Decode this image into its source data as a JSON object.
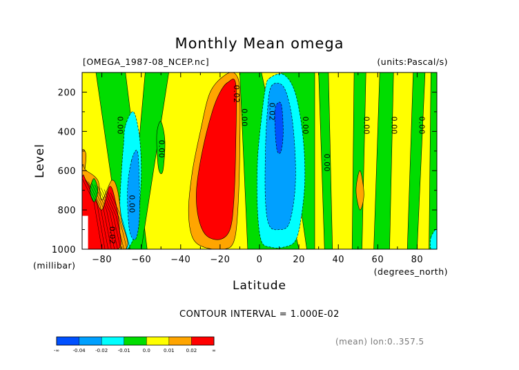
{
  "chart_data": {
    "type": "heatmap",
    "title": "Monthly Mean omega",
    "file_label": "[OMEGA_1987-08_NCEP.nc]",
    "units_label": "(units:Pascal/s)",
    "xlabel": "Latitude",
    "x_unit": "(degrees_north)",
    "ylabel": "Level",
    "y_unit": "(millibar)",
    "xlim": [
      -90,
      90
    ],
    "ylim": [
      1000,
      100
    ],
    "x_ticks": [
      -80,
      -60,
      -40,
      -20,
      0,
      20,
      40,
      60,
      80
    ],
    "y_ticks": [
      200,
      400,
      600,
      800,
      1000
    ],
    "contour_interval_text": "CONTOUR INTERVAL = 1.000E-02",
    "footer_text": "(mean) lon:0..357.5",
    "colorbar": {
      "labels": [
        "-∞",
        "-0.04",
        "-0.02",
        "-0.01",
        "0.0",
        "0.01",
        "0.02",
        "∞"
      ],
      "colors": [
        "#0050ff",
        "#00a0ff",
        "#00ffff",
        "#00dd00",
        "#ffff00",
        "#ffa500",
        "#ff0000"
      ]
    },
    "contour_labels": [
      {
        "text": "0.00",
        "lat": -72,
        "lev": 370
      },
      {
        "text": "0.00",
        "lat": -51,
        "lev": 490
      },
      {
        "text": "0.02",
        "lat": -13,
        "lev": 210
      },
      {
        "text": "0.00",
        "lat": -9,
        "lev": 330
      },
      {
        "text": "0.02",
        "lat": 5,
        "lev": 300
      },
      {
        "text": "0.00",
        "lat": 22,
        "lev": 370
      },
      {
        "text": "0.00",
        "lat": 33,
        "lev": 560
      },
      {
        "text": "0.00",
        "lat": 53,
        "lev": 370
      },
      {
        "text": "0.00",
        "lat": 67,
        "lev": 370
      },
      {
        "text": "0.00",
        "lat": 81,
        "lev": 370
      },
      {
        "text": "0.00",
        "lat": -66,
        "lev": 770
      },
      {
        "text": "0.02",
        "lat": -76,
        "lev": 930
      }
    ],
    "regions": [
      {
        "level": "-0.01",
        "color": "#00ffff",
        "pts": [
          [
            -68,
            370
          ],
          [
            -64,
            300
          ],
          [
            -61,
            420
          ],
          [
            -60,
            600
          ],
          [
            -61,
            800
          ],
          [
            -63,
            920
          ],
          [
            -67,
            1000
          ],
          [
            -71,
            1000
          ],
          [
            -71,
            800
          ],
          [
            -70,
            600
          ],
          [
            -69,
            470
          ]
        ]
      },
      {
        "level": "-0.02",
        "color": "#00a0ff",
        "pts": [
          [
            -65,
            550
          ],
          [
            -62,
            500
          ],
          [
            -61,
            650
          ],
          [
            -61,
            850
          ],
          [
            -63,
            950
          ],
          [
            -66,
            900
          ],
          [
            -67,
            700
          ]
        ]
      },
      {
        "level": "0.0",
        "color": "#00dd00",
        "pts": [
          [
            -52,
            400
          ],
          [
            -50,
            350
          ],
          [
            -48,
            450
          ],
          [
            -49,
            600
          ],
          [
            -51,
            600
          ],
          [
            -52,
            500
          ]
        ]
      },
      {
        "level": "-0.01",
        "color": "#00ffff",
        "pts": [
          [
            5,
            130
          ],
          [
            12,
            110
          ],
          [
            18,
            200
          ],
          [
            22,
            420
          ],
          [
            23,
            650
          ],
          [
            21,
            850
          ],
          [
            18,
            960
          ],
          [
            12,
            990
          ],
          [
            6,
            990
          ],
          [
            1,
            960
          ],
          [
            -1,
            800
          ],
          [
            -1,
            550
          ],
          [
            1,
            330
          ],
          [
            3,
            180
          ]
        ]
      },
      {
        "level": "-0.02",
        "color": "#00a0ff",
        "pts": [
          [
            6,
            170
          ],
          [
            12,
            170
          ],
          [
            16,
            300
          ],
          [
            18,
            500
          ],
          [
            18,
            700
          ],
          [
            15,
            870
          ],
          [
            10,
            900
          ],
          [
            5,
            880
          ],
          [
            3,
            750
          ],
          [
            3,
            500
          ],
          [
            4,
            300
          ]
        ]
      },
      {
        "level": "-0.04",
        "color": "#0050ff",
        "pts": [
          [
            8,
            280
          ],
          [
            11,
            260
          ],
          [
            12,
            400
          ],
          [
            11,
            500
          ],
          [
            9,
            500
          ],
          [
            8,
            400
          ]
        ]
      },
      {
        "level": "0.01",
        "color": "#ffa500",
        "pts": [
          [
            -17,
            110
          ],
          [
            -12,
            110
          ],
          [
            -10,
            200
          ],
          [
            -10,
            500
          ],
          [
            -11,
            800
          ],
          [
            -13,
            960
          ],
          [
            -18,
            1000
          ],
          [
            -28,
            990
          ],
          [
            -34,
            940
          ],
          [
            -36,
            800
          ],
          [
            -34,
            600
          ],
          [
            -30,
            400
          ],
          [
            -25,
            200
          ]
        ]
      },
      {
        "level": "0.02",
        "color": "#ff0000",
        "pts": [
          [
            -16,
            150
          ],
          [
            -12,
            160
          ],
          [
            -12,
            450
          ],
          [
            -13,
            750
          ],
          [
            -15,
            900
          ],
          [
            -20,
            950
          ],
          [
            -27,
            930
          ],
          [
            -31,
            840
          ],
          [
            -32,
            700
          ],
          [
            -29,
            500
          ],
          [
            -24,
            300
          ],
          [
            -20,
            200
          ]
        ]
      },
      {
        "level": "0.01",
        "color": "#ffa500",
        "pts": [
          [
            -90,
            500
          ],
          [
            -88,
            520
          ],
          [
            -89,
            620
          ],
          [
            -90,
            650
          ]
        ]
      },
      {
        "level": "0.01",
        "color": "#ffa500",
        "pts": [
          [
            -88,
            600
          ],
          [
            -82,
            650
          ],
          [
            -80,
            750
          ],
          [
            -75,
            650
          ],
          [
            -72,
            700
          ],
          [
            -70,
            850
          ],
          [
            -68,
            1000
          ],
          [
            -90,
            1000
          ],
          [
            -90,
            600
          ]
        ]
      },
      {
        "level": "0.02",
        "color": "#ff0000",
        "pts": [
          [
            -88,
            650
          ],
          [
            -84,
            720
          ],
          [
            -80,
            800
          ],
          [
            -76,
            680
          ],
          [
            -73,
            760
          ],
          [
            -71,
            900
          ],
          [
            -72,
            1000
          ],
          [
            -90,
            1000
          ],
          [
            -90,
            650
          ]
        ]
      },
      {
        "level": "0.0",
        "color": "#00dd00",
        "pts": [
          [
            -84,
            640
          ],
          [
            -82,
            700
          ],
          [
            -84,
            760
          ],
          [
            -86,
            700
          ]
        ]
      },
      {
        "level": "0.01",
        "color": "#ffa500",
        "pts": [
          [
            51,
            600
          ],
          [
            53,
            720
          ],
          [
            51,
            800
          ],
          [
            49,
            700
          ]
        ]
      },
      {
        "level": "-0.01",
        "color": "#00ffff",
        "pts": [
          [
            87,
            940
          ],
          [
            90,
            900
          ],
          [
            90,
            1000
          ],
          [
            87,
            1000
          ]
        ]
      }
    ]
  }
}
